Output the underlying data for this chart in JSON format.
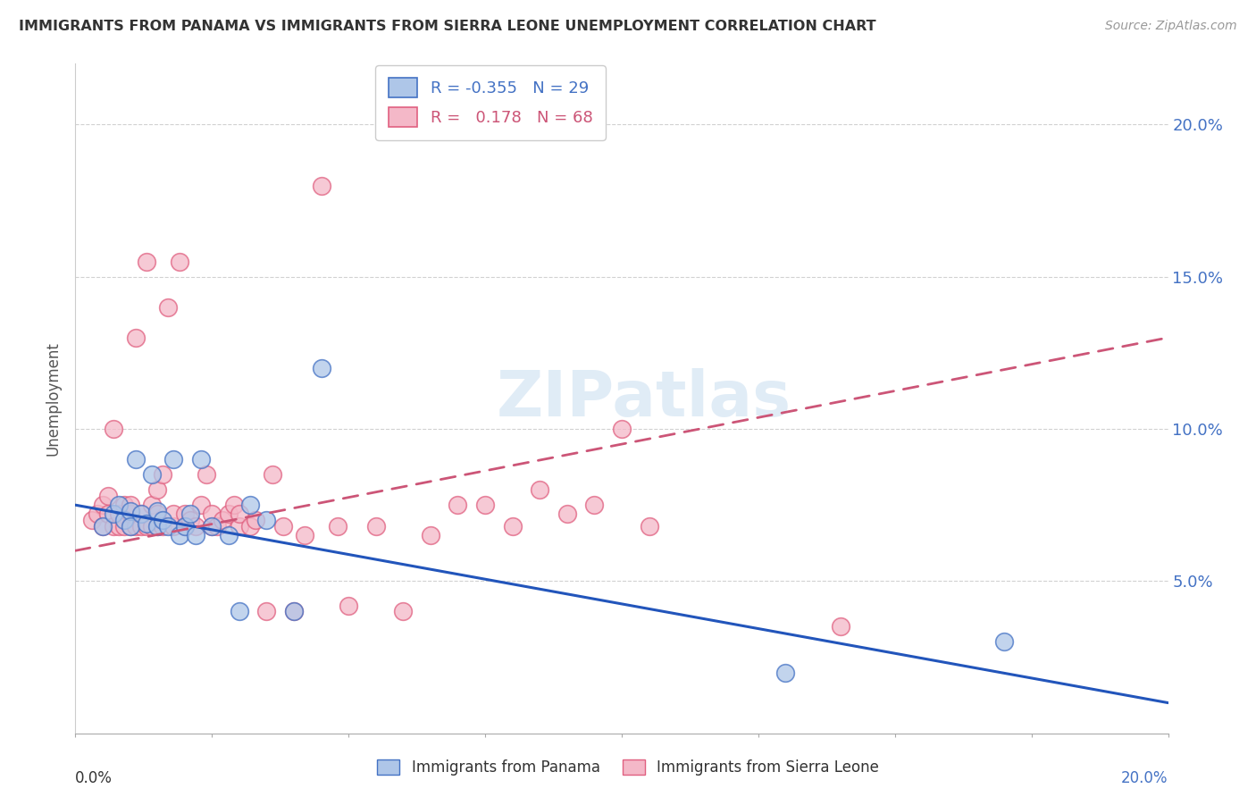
{
  "title": "IMMIGRANTS FROM PANAMA VS IMMIGRANTS FROM SIERRA LEONE UNEMPLOYMENT CORRELATION CHART",
  "source": "Source: ZipAtlas.com",
  "ylabel": "Unemployment",
  "xlim": [
    0.0,
    0.2
  ],
  "ylim": [
    0.0,
    0.22
  ],
  "yticks": [
    0.05,
    0.1,
    0.15,
    0.2
  ],
  "ytick_labels_right": [
    "5.0%",
    "10.0%",
    "15.0%",
    "20.0%"
  ],
  "xticks": [
    0.0,
    0.025,
    0.05,
    0.075,
    0.1,
    0.125,
    0.15,
    0.175,
    0.2
  ],
  "panama_color": "#aec6e8",
  "panama_edge_color": "#4472c4",
  "sierra_leone_color": "#f4b8c8",
  "sierra_leone_edge_color": "#e06080",
  "panama_line_color": "#2255bb",
  "sierra_leone_line_color": "#cc5577",
  "legend_R_panama": "-0.355",
  "legend_N_panama": "29",
  "legend_R_sierra_leone": "0.178",
  "legend_N_sierra_leone": "68",
  "watermark_text": "ZIPatlas",
  "background_color": "#ffffff",
  "grid_color": "#cccccc",
  "panama_scatter_x": [
    0.005,
    0.007,
    0.008,
    0.009,
    0.01,
    0.01,
    0.011,
    0.012,
    0.013,
    0.014,
    0.015,
    0.015,
    0.016,
    0.017,
    0.018,
    0.019,
    0.02,
    0.021,
    0.022,
    0.023,
    0.025,
    0.028,
    0.03,
    0.032,
    0.035,
    0.04,
    0.045,
    0.17,
    0.13
  ],
  "panama_scatter_y": [
    0.068,
    0.072,
    0.075,
    0.07,
    0.073,
    0.068,
    0.09,
    0.072,
    0.069,
    0.085,
    0.068,
    0.073,
    0.07,
    0.068,
    0.09,
    0.065,
    0.068,
    0.072,
    0.065,
    0.09,
    0.068,
    0.065,
    0.04,
    0.075,
    0.07,
    0.04,
    0.12,
    0.03,
    0.02
  ],
  "sierra_leone_scatter_x": [
    0.003,
    0.004,
    0.005,
    0.005,
    0.006,
    0.006,
    0.007,
    0.007,
    0.008,
    0.008,
    0.009,
    0.009,
    0.01,
    0.01,
    0.01,
    0.011,
    0.011,
    0.012,
    0.012,
    0.013,
    0.013,
    0.014,
    0.014,
    0.015,
    0.015,
    0.015,
    0.016,
    0.016,
    0.017,
    0.018,
    0.018,
    0.019,
    0.02,
    0.02,
    0.021,
    0.022,
    0.023,
    0.024,
    0.025,
    0.025,
    0.026,
    0.027,
    0.028,
    0.029,
    0.03,
    0.03,
    0.032,
    0.033,
    0.035,
    0.036,
    0.038,
    0.04,
    0.042,
    0.045,
    0.048,
    0.05,
    0.055,
    0.06,
    0.065,
    0.07,
    0.075,
    0.08,
    0.085,
    0.09,
    0.095,
    0.1,
    0.105,
    0.14
  ],
  "sierra_leone_scatter_y": [
    0.07,
    0.072,
    0.068,
    0.075,
    0.072,
    0.078,
    0.068,
    0.1,
    0.068,
    0.072,
    0.068,
    0.075,
    0.068,
    0.072,
    0.075,
    0.068,
    0.13,
    0.068,
    0.072,
    0.068,
    0.155,
    0.068,
    0.075,
    0.068,
    0.072,
    0.08,
    0.068,
    0.085,
    0.14,
    0.068,
    0.072,
    0.155,
    0.068,
    0.072,
    0.07,
    0.068,
    0.075,
    0.085,
    0.068,
    0.072,
    0.068,
    0.07,
    0.072,
    0.075,
    0.068,
    0.072,
    0.068,
    0.07,
    0.04,
    0.085,
    0.068,
    0.04,
    0.065,
    0.18,
    0.068,
    0.042,
    0.068,
    0.04,
    0.065,
    0.075,
    0.075,
    0.068,
    0.08,
    0.072,
    0.075,
    0.1,
    0.068,
    0.035
  ],
  "panama_line_x": [
    0.0,
    0.2
  ],
  "panama_line_y": [
    0.075,
    0.01
  ],
  "sierra_line_x": [
    0.0,
    0.2
  ],
  "sierra_line_y": [
    0.06,
    0.13
  ]
}
